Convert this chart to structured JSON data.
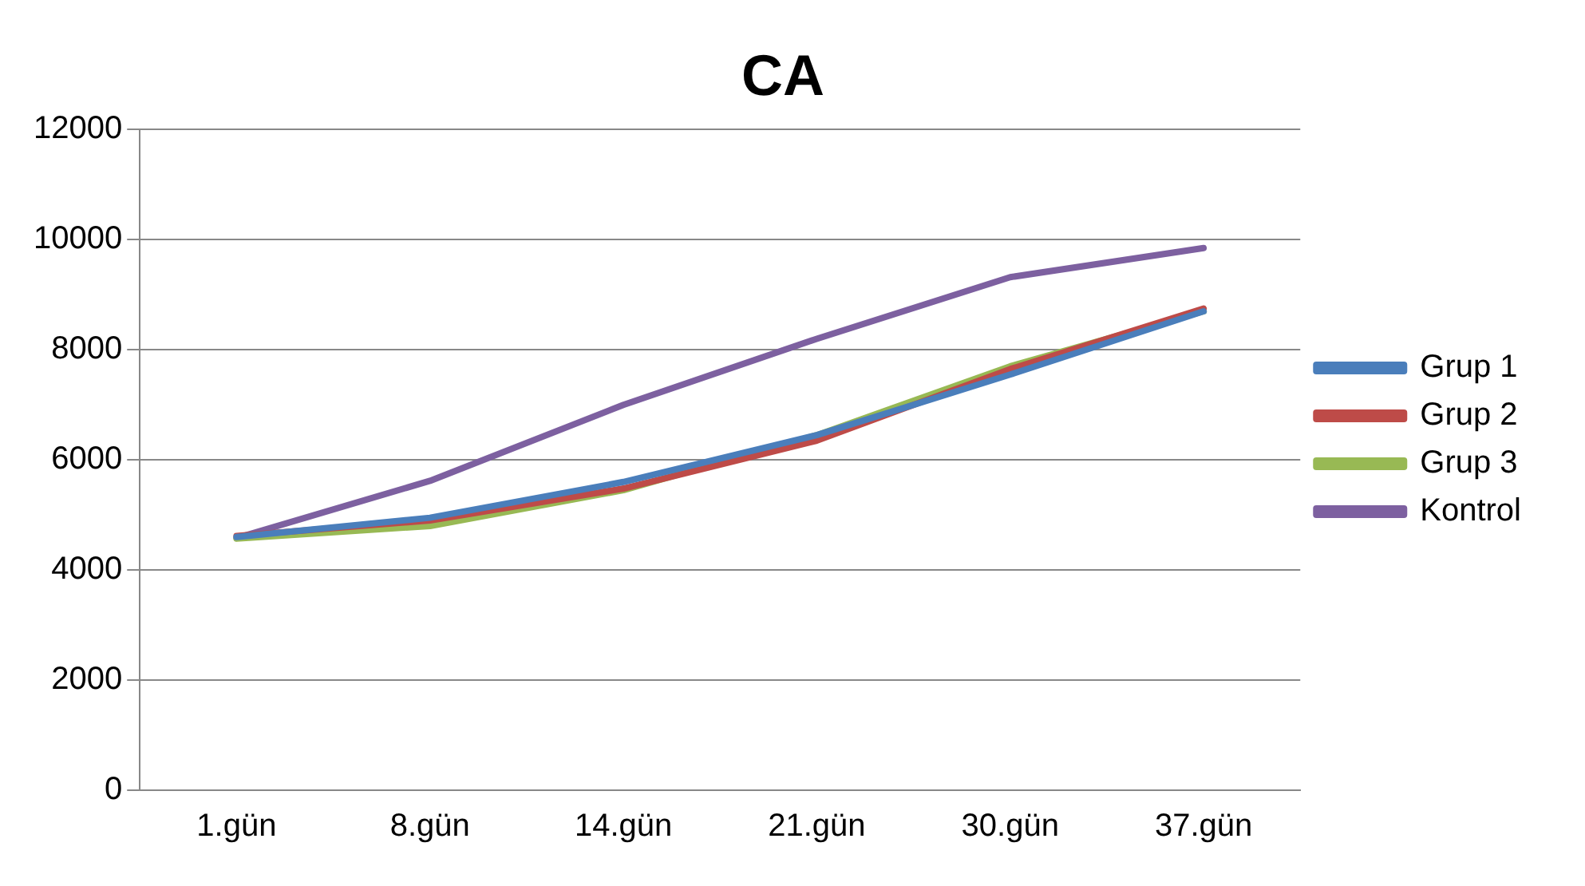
{
  "chart_data": {
    "type": "line",
    "title": "CA",
    "categories": [
      "1.gün",
      "8.gün",
      "14.gün",
      "21.gün",
      "30.gün",
      "37.gün"
    ],
    "series": [
      {
        "name": "Grup 1",
        "color": "#4a7ebb",
        "values": [
          4600,
          4950,
          5600,
          6450,
          7550,
          8700
        ]
      },
      {
        "name": "Grup 2",
        "color": "#be4b48",
        "values": [
          4620,
          4900,
          5480,
          6350,
          7650,
          8750
        ]
      },
      {
        "name": "Grup 3",
        "color": "#98b954",
        "values": [
          4570,
          4800,
          5450,
          6450,
          7700,
          8700
        ]
      },
      {
        "name": "Kontrol",
        "color": "#7d60a0",
        "values": [
          4580,
          5620,
          7000,
          8200,
          9320,
          9850
        ]
      }
    ],
    "ylim": [
      0,
      12000
    ],
    "yticks": [
      0,
      2000,
      4000,
      6000,
      8000,
      10000,
      12000
    ],
    "grid": "y",
    "legend": "right",
    "marker": "none",
    "line_style": "solid"
  }
}
